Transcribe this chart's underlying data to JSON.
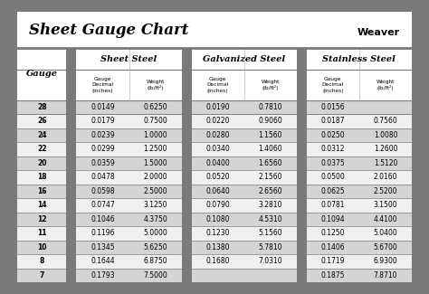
{
  "title": "Sheet Gauge Chart",
  "bg_outer": "#7a7a7a",
  "bg_white": "#ffffff",
  "bg_title": "#ffffff",
  "bg_header_section": "#ffffff",
  "bg_row_alt1": "#d4d4d4",
  "bg_row_alt2": "#f0f0f0",
  "divider_color": "#7a7a7a",
  "gauges": [
    28,
    26,
    24,
    22,
    20,
    18,
    16,
    14,
    12,
    11,
    10,
    8,
    7
  ],
  "sheet_steel_dec": [
    "0.0149",
    "0.0179",
    "0.0239",
    "0.0299",
    "0.0359",
    "0.0478",
    "0.0598",
    "0.0747",
    "0.1046",
    "0.1196",
    "0.1345",
    "0.1644",
    "0.1793"
  ],
  "sheet_steel_wt": [
    "0.6250",
    "0.7500",
    "1.0000",
    "1.2500",
    "1.5000",
    "2.0000",
    "2.5000",
    "3.1250",
    "4.3750",
    "5.0000",
    "5.6250",
    "6.8750",
    "7.5000"
  ],
  "galv_steel_dec": [
    "0.0190",
    "0.0220",
    "0.0280",
    "0.0340",
    "0.0400",
    "0.0520",
    "0.0640",
    "0.0790",
    "0.1080",
    "0.1230",
    "0.1380",
    "0.1680",
    ""
  ],
  "galv_steel_wt": [
    "0.7810",
    "0.9060",
    "1.1560",
    "1.4060",
    "1.6560",
    "2.1560",
    "2.6560",
    "3.2810",
    "4.5310",
    "5.1560",
    "5.7810",
    "7.0310",
    ""
  ],
  "stainless_dec": [
    "0.0156",
    "0.0187",
    "0.0250",
    "0.0312",
    "0.0375",
    "0.0500",
    "0.0625",
    "0.0781",
    "0.1094",
    "0.1250",
    "0.1406",
    "0.1719",
    "0.1875"
  ],
  "stainless_wt": [
    "",
    "0.7560",
    "1.0080",
    "1.2600",
    "1.5120",
    "2.0160",
    "2.5200",
    "3.1500",
    "4.4100",
    "5.0400",
    "5.6700",
    "6.9300",
    "7.8710"
  ]
}
